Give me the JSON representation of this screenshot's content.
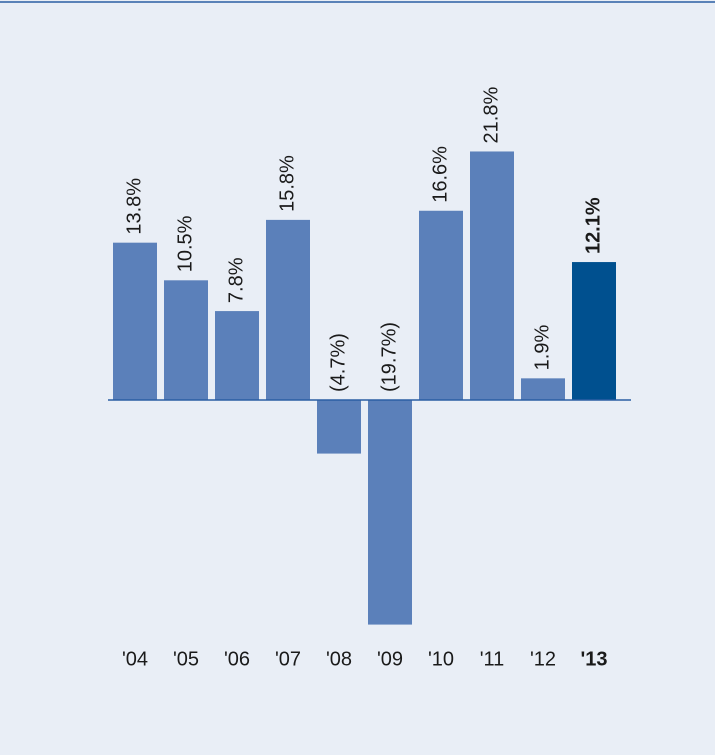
{
  "chart_data": {
    "type": "bar",
    "categories": [
      "'04",
      "'05",
      "'06",
      "'07",
      "'08",
      "'09",
      "'10",
      "'11",
      "'12",
      "'13"
    ],
    "values": [
      13.8,
      10.5,
      7.8,
      15.8,
      -4.7,
      -19.7,
      16.6,
      21.8,
      1.9,
      12.1
    ],
    "value_labels": [
      "13.8%",
      "10.5%",
      "7.8%",
      "15.8%",
      "(4.7%)",
      "(19.7%)",
      "16.6%",
      "21.8%",
      "1.9%",
      "12.1%"
    ],
    "colors": [
      "#5b80ba",
      "#5b80ba",
      "#5b80ba",
      "#5b80ba",
      "#5b80ba",
      "#5b80ba",
      "#5b80ba",
      "#5b80ba",
      "#5b80ba",
      "#00508f"
    ],
    "bold": [
      false,
      false,
      false,
      false,
      false,
      false,
      false,
      false,
      false,
      true
    ]
  }
}
